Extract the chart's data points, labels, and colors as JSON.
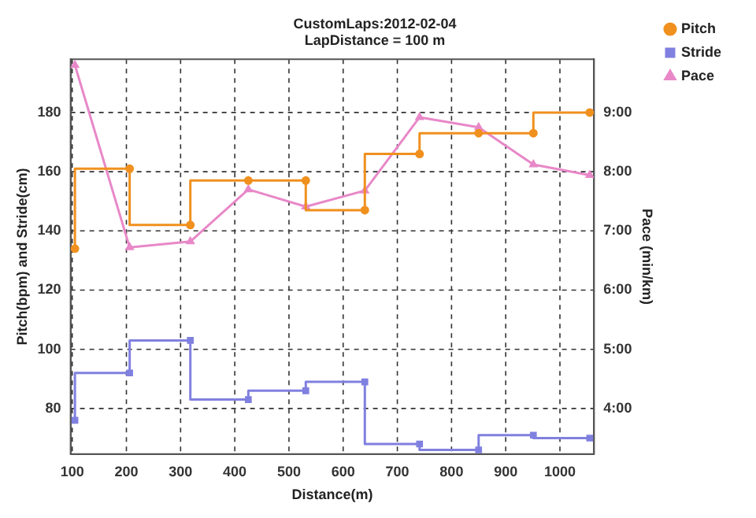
{
  "chart_data": {
    "type": "line",
    "title": "CustomLaps:2012-02-04",
    "subtitle": "LapDistance = 100 m",
    "xlabel": "Distance(m)",
    "ylabel": "Pitch(bpm) and Stride(cm)",
    "y2label": "Pace (min/km)",
    "x": [
      105,
      206,
      318,
      425,
      531,
      640,
      741,
      850,
      951,
      1055
    ],
    "series": [
      {
        "name": "Pitch",
        "type": "step",
        "color": "#f0901e",
        "marker": "circle",
        "values": [
          134,
          161,
          142,
          157,
          157,
          147,
          166,
          173,
          173,
          180
        ]
      },
      {
        "name": "Stride",
        "type": "step",
        "color": "#8080e0",
        "marker": "square",
        "values": [
          76,
          92,
          103,
          83,
          86,
          89,
          68,
          66,
          71,
          70
        ]
      },
      {
        "name": "Pace",
        "color": "#e888c8",
        "marker": "triangle",
        "axis": "y2",
        "values": [
          9.8,
          6.72,
          6.82,
          7.7,
          7.41,
          7.68,
          8.92,
          8.75,
          8.12,
          7.94
        ]
      }
    ],
    "xlim": [
      97,
      1063
    ],
    "xticks": [
      100,
      200,
      300,
      400,
      500,
      600,
      700,
      800,
      900,
      1000
    ],
    "ylim": [
      64.6,
      198
    ],
    "yticks": [
      80,
      100,
      120,
      140,
      160,
      180
    ],
    "y2lim": [
      3.23,
      9.9
    ],
    "y2ticks": [
      {
        "value": 4,
        "label": "4:00"
      },
      {
        "value": 5,
        "label": "5:00"
      },
      {
        "value": 6,
        "label": "6:00"
      },
      {
        "value": 7,
        "label": "7:00"
      },
      {
        "value": 8,
        "label": "8:00"
      },
      {
        "value": 9,
        "label": "9:00"
      }
    ],
    "grid": true,
    "legend": "top right",
    "line_style": "solid"
  }
}
